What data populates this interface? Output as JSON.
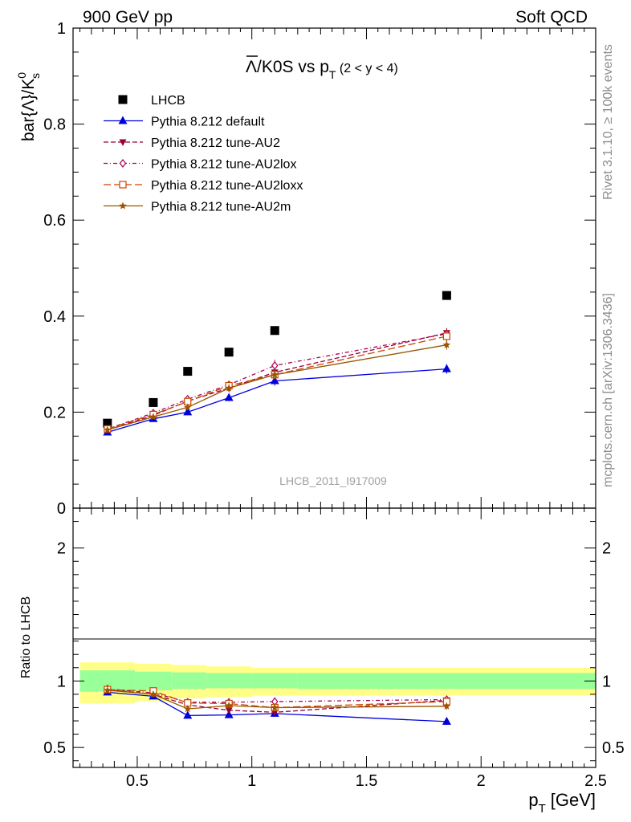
{
  "header": {
    "left": "900 GeV pp",
    "right": "Soft QCD"
  },
  "side_labels": {
    "rivet": "Rivet 3.1.10, ≥ 100k events",
    "mcplots": "mcplots.cern.ch [arXiv:1306.3436]"
  },
  "watermark": "LHCB_2011_I917009",
  "colors": {
    "lhcb": "#000000",
    "default": "#0000dd",
    "au2": "#990033",
    "au2lox": "#aa0055",
    "au2loxx": "#cc4400",
    "au2m": "#995500",
    "band_inner": "#99ff99",
    "band_outer": "#ffff88"
  },
  "chart_data": [
    {
      "type": "scatter",
      "title": "",
      "ylabel": "bar{Λ}/K",
      "ylabel_sup": "0",
      "ylabel_sub": "s",
      "xlim": [
        0.22,
        2.5
      ],
      "ylim": [
        0,
        1.0
      ],
      "yticks": [
        0,
        0.2,
        0.4,
        0.6,
        0.8,
        1
      ],
      "ytick_labels": [
        "0",
        "0.2",
        "0.4",
        "0.6",
        "0.8",
        "1"
      ],
      "legend_position": "top-left",
      "x": [
        0.37,
        0.57,
        0.72,
        0.9,
        1.1,
        1.85
      ],
      "x_err": [
        0.12,
        0.08,
        0.07,
        0.1,
        0.1,
        0.65
      ],
      "series": [
        {
          "name": "LHCB",
          "key": "lhcb",
          "marker": "square",
          "line": "none",
          "values": [
            0.177,
            0.22,
            0.285,
            0.325,
            0.37,
            0.443
          ],
          "errors": [
            0,
            0,
            0,
            0,
            0,
            0
          ]
        },
        {
          "name": "Pythia 8.212 default",
          "key": "default",
          "marker": "triangle-up",
          "line": "solid",
          "values": [
            0.158,
            0.186,
            0.2,
            0.23,
            0.265,
            0.29
          ],
          "errors": [
            0.004,
            0.005,
            0.006,
            0.007,
            0.01,
            0.01
          ]
        },
        {
          "name": "Pythia 8.212 tune-AU2",
          "key": "au2",
          "marker": "triangle-down",
          "line": "dashed",
          "values": [
            0.163,
            0.193,
            0.223,
            0.25,
            0.283,
            0.365
          ],
          "errors": [
            0.004,
            0.005,
            0.006,
            0.008,
            0.01,
            0.01
          ]
        },
        {
          "name": "Pythia 8.212 tune-AU2lox",
          "key": "au2lox",
          "marker": "diamond",
          "line": "dashdot",
          "values": [
            0.165,
            0.198,
            0.227,
            0.257,
            0.297,
            0.363
          ],
          "errors": [
            0.004,
            0.005,
            0.006,
            0.008,
            0.012,
            0.012
          ]
        },
        {
          "name": "Pythia 8.212 tune-AU2loxx",
          "key": "au2loxx",
          "marker": "open-square",
          "line": "longdash",
          "values": [
            0.165,
            0.195,
            0.222,
            0.255,
            0.278,
            0.358
          ],
          "errors": [
            0.004,
            0.005,
            0.006,
            0.008,
            0.01,
            0.012
          ]
        },
        {
          "name": "Pythia 8.212 tune-AU2m",
          "key": "au2m",
          "marker": "star",
          "line": "solid",
          "values": [
            0.163,
            0.19,
            0.21,
            0.25,
            0.278,
            0.34
          ],
          "errors": [
            0.004,
            0.005,
            0.006,
            0.008,
            0.01,
            0.01
          ]
        }
      ]
    },
    {
      "type": "scatter",
      "title": "",
      "ylabel": "Ratio to LHCB",
      "xlabel": "p",
      "xlabel_sub": "T",
      "xlabel_unit": "[GeV]",
      "xlim": [
        0.22,
        2.5
      ],
      "ylim": [
        0.35,
        2.3
      ],
      "xticks": [
        0.5,
        1,
        1.5,
        2,
        2.5
      ],
      "xtick_labels": [
        "0.5",
        "1",
        "1.5",
        "2",
        "2.5"
      ],
      "yticks": [
        0.5,
        1,
        2
      ],
      "ytick_labels": [
        "0.5",
        "1",
        "2"
      ],
      "band_edges": [
        0.25,
        0.49,
        0.65,
        0.8,
        1.0,
        1.2,
        2.5
      ],
      "band_inner": [
        [
          0.92,
          1.08
        ],
        [
          0.93,
          1.07
        ],
        [
          0.94,
          1.065
        ],
        [
          0.945,
          1.06
        ],
        [
          0.945,
          1.06
        ],
        [
          0.94,
          1.06
        ]
      ],
      "band_outer": [
        [
          0.83,
          1.14
        ],
        [
          0.85,
          1.13
        ],
        [
          0.87,
          1.12
        ],
        [
          0.88,
          1.11
        ],
        [
          0.89,
          1.1
        ],
        [
          0.89,
          1.1
        ]
      ],
      "series": [
        {
          "name": "Pythia 8.212 default",
          "key": "default",
          "values": [
            0.915,
            0.885,
            0.74,
            0.745,
            0.755,
            0.695
          ],
          "errors": [
            0.02,
            0.02,
            0.02,
            0.02,
            0.025,
            0.025
          ]
        },
        {
          "name": "Pythia 8.212 tune-AU2",
          "key": "au2",
          "values": [
            0.935,
            0.9,
            0.82,
            0.78,
            0.765,
            0.855
          ],
          "errors": [
            0.02,
            0.02,
            0.02,
            0.02,
            0.025,
            0.025
          ]
        },
        {
          "name": "Pythia 8.212 tune-AU2lox",
          "key": "au2lox",
          "values": [
            0.94,
            0.91,
            0.84,
            0.84,
            0.845,
            0.86
          ],
          "errors": [
            0.02,
            0.02,
            0.02,
            0.025,
            0.03,
            0.025
          ]
        },
        {
          "name": "Pythia 8.212 tune-AU2loxx",
          "key": "au2loxx",
          "values": [
            0.935,
            0.925,
            0.835,
            0.83,
            0.8,
            0.845
          ],
          "errors": [
            0.02,
            0.02,
            0.02,
            0.025,
            0.03,
            0.025
          ]
        },
        {
          "name": "Pythia 8.212 tune-AU2m",
          "key": "au2m",
          "values": [
            0.93,
            0.9,
            0.79,
            0.815,
            0.8,
            0.81
          ],
          "errors": [
            0.02,
            0.02,
            0.02,
            0.025,
            0.025,
            0.025
          ]
        }
      ]
    }
  ]
}
